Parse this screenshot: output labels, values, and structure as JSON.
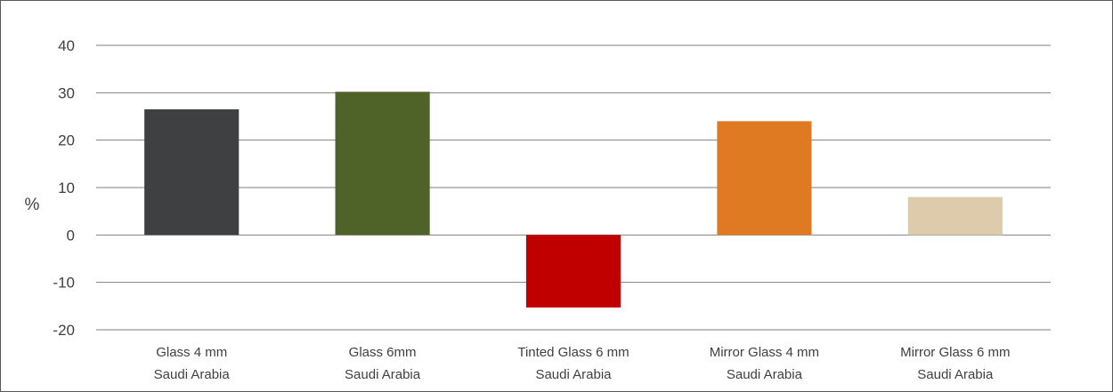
{
  "chart_data": {
    "type": "bar",
    "title": "",
    "xlabel": "",
    "ylabel": "%",
    "ylim": [
      -20,
      40
    ],
    "yticks": [
      40,
      30,
      20,
      10,
      0,
      -10,
      -20
    ],
    "grid": true,
    "categories": [
      [
        "Glass 4 mm",
        "Saudi Arabia"
      ],
      [
        "Glass 6mm",
        "Saudi Arabia"
      ],
      [
        "Tinted Glass 6 mm",
        "Saudi Arabia"
      ],
      [
        "Mirror Glass 4 mm",
        "Saudi Arabia"
      ],
      [
        "Mirror Glass 6 mm",
        "Saudi Arabia"
      ]
    ],
    "values": [
      26.5,
      30.2,
      -15.3,
      24.0,
      8.0
    ],
    "colors": [
      "#3f4042",
      "#4f6228",
      "#c00000",
      "#e07a22",
      "#ddcbab"
    ]
  }
}
